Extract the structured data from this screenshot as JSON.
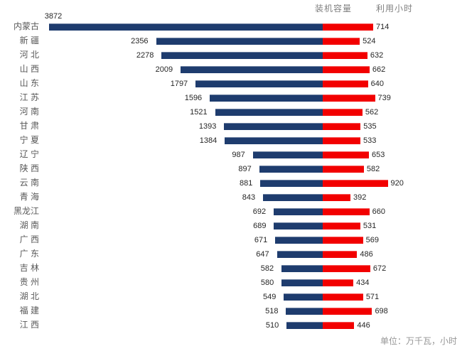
{
  "header": {
    "capacity_label": "装机容量",
    "hours_label": "利用小时"
  },
  "footer": {
    "unit_note": "单位：万千瓦，小时"
  },
  "colors": {
    "capacity_bar": "#1E3C6E",
    "hours_bar": "#F20000",
    "header_text": "#7F7F7F",
    "category_text": "#595959",
    "value_text": "#262626"
  },
  "chart_data": {
    "type": "bar",
    "orientation": "horizontal-diverging",
    "legend_position": "top",
    "grid": false,
    "unit_note": "单位：万千瓦，小时",
    "categories": [
      "内蒙古",
      "新 疆",
      "河 北",
      "山 西",
      "山 东",
      "江 苏",
      "河 南",
      "甘 肃",
      "宁 夏",
      "辽 宁",
      "陕 西",
      "云 南",
      "青 海",
      "黑龙江",
      "湖 南",
      "广 西",
      "广 东",
      "吉 林",
      "贵 州",
      "湖 北",
      "福 建",
      "江 西"
    ],
    "series": [
      {
        "name": "装机容量",
        "color": "#1E3C6E",
        "values": [
          3872,
          2356,
          2278,
          2009,
          1797,
          1596,
          1521,
          1393,
          1384,
          987,
          897,
          881,
          843,
          692,
          689,
          671,
          647,
          582,
          580,
          549,
          518,
          510
        ]
      },
      {
        "name": "利用小时",
        "color": "#F20000",
        "values": [
          714,
          524,
          632,
          662,
          640,
          739,
          562,
          535,
          533,
          653,
          582,
          920,
          392,
          660,
          531,
          569,
          486,
          672,
          434,
          571,
          698,
          446
        ]
      }
    ]
  }
}
